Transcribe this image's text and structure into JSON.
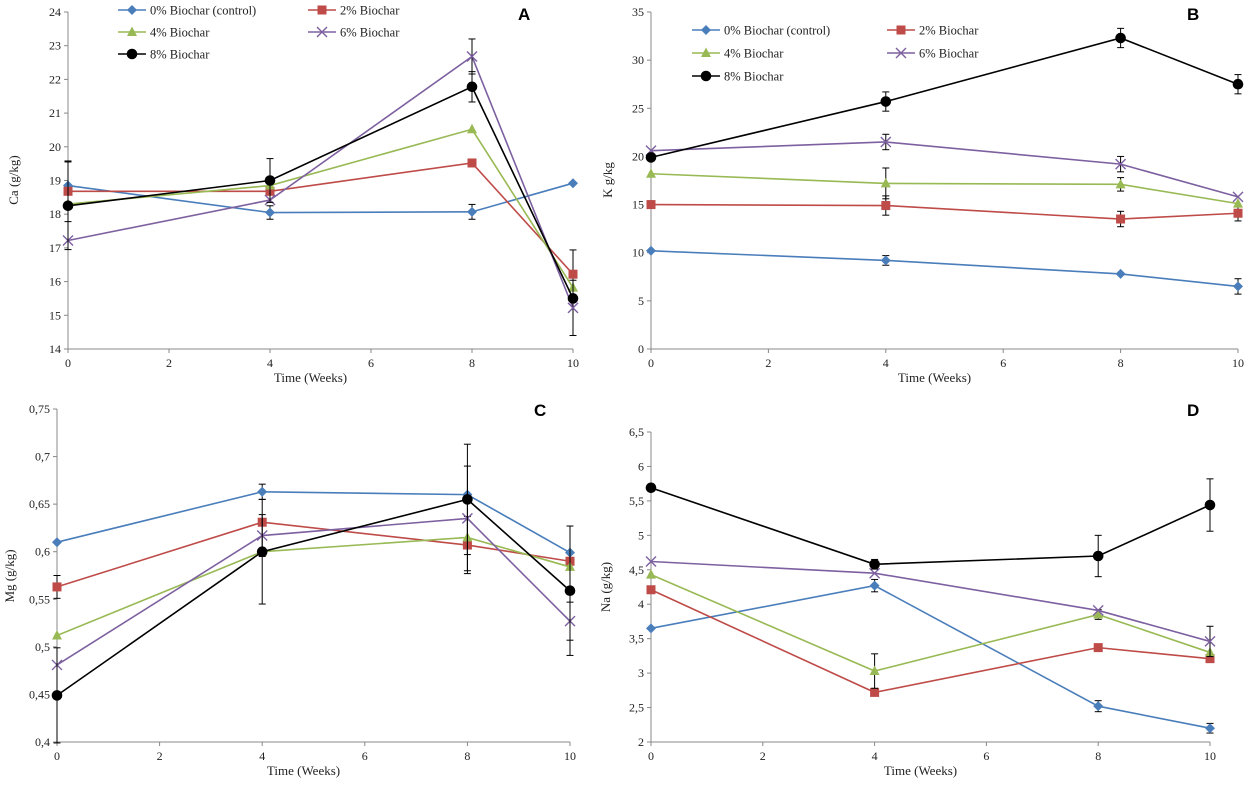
{
  "figure": {
    "panel_letters": [
      "A",
      "B",
      "C",
      "D"
    ]
  },
  "series_styles": [
    {
      "name": "0% Biochar (control)",
      "color": "#4a7ebb",
      "marker": "diamond"
    },
    {
      "name": "2% Biochar",
      "color": "#be4b48",
      "marker": "square"
    },
    {
      "name": "4% Biochar",
      "color": "#98b954",
      "marker": "triangle"
    },
    {
      "name": "6% Biochar",
      "color": "#7d60a0",
      "marker": "x"
    },
    {
      "name": "8% Biochar",
      "color": "#000000",
      "marker": "circle"
    }
  ],
  "chart_data": [
    {
      "panel": "A",
      "type": "line",
      "xlabel": "Time (Weeks)",
      "ylabel": "Ca (g/kg)",
      "xlim": [
        0,
        10
      ],
      "ylim": [
        14,
        24
      ],
      "xticks": [
        "0",
        "2",
        "4",
        "6",
        "8",
        "10"
      ],
      "yticks": [
        "14",
        "15",
        "16",
        "17",
        "18",
        "19",
        "20",
        "21",
        "22",
        "23",
        "24"
      ],
      "legend_position": "top-left",
      "x": [
        0,
        4,
        8,
        10
      ],
      "series": [
        {
          "name": "0% Biochar (control)",
          "values": [
            18.85,
            18.05,
            18.07,
            18.92
          ],
          "errors": [
            0,
            0.2,
            0.22,
            0
          ]
        },
        {
          "name": "2% Biochar",
          "values": [
            18.68,
            18.68,
            19.52,
            16.22
          ],
          "errors": [
            0.9,
            0,
            0,
            0.72
          ]
        },
        {
          "name": "4% Biochar",
          "values": [
            18.3,
            18.85,
            20.52,
            15.82
          ],
          "errors": [
            0,
            0,
            0,
            0
          ]
        },
        {
          "name": "6% Biochar",
          "values": [
            17.22,
            18.42,
            22.68,
            15.22
          ],
          "errors": [
            0,
            0,
            0.52,
            0.82
          ]
        },
        {
          "name": "8% Biochar",
          "values": [
            18.25,
            19.0,
            21.78,
            15.5
          ],
          "errors": [
            1.3,
            0.65,
            0.45,
            0
          ]
        }
      ]
    },
    {
      "panel": "B",
      "type": "line",
      "xlabel": "Time (Weeks)",
      "ylabel": "K g/kg",
      "xlim": [
        0,
        10
      ],
      "ylim": [
        0,
        35
      ],
      "xticks": [
        "0",
        "2",
        "4",
        "6",
        "8",
        "10"
      ],
      "yticks": [
        "0",
        "5",
        "10",
        "15",
        "20",
        "25",
        "30",
        "35"
      ],
      "legend_position": "top-left",
      "x": [
        0,
        4,
        8,
        10
      ],
      "series": [
        {
          "name": "0% Biochar (control)",
          "values": [
            10.2,
            9.2,
            7.8,
            6.5
          ],
          "errors": [
            0,
            0.5,
            0,
            0.8
          ]
        },
        {
          "name": "2% Biochar",
          "values": [
            15.0,
            14.9,
            13.5,
            14.1
          ],
          "errors": [
            0,
            1.0,
            0.8,
            0.8
          ]
        },
        {
          "name": "4% Biochar",
          "values": [
            18.2,
            17.2,
            17.1,
            15.1
          ],
          "errors": [
            0,
            1.6,
            0.7,
            0
          ]
        },
        {
          "name": "6% Biochar",
          "values": [
            20.6,
            21.5,
            19.2,
            15.8
          ],
          "errors": [
            0,
            0.8,
            0.8,
            0
          ]
        },
        {
          "name": "8% Biochar",
          "values": [
            19.9,
            25.7,
            32.3,
            27.5
          ],
          "errors": [
            0,
            1.0,
            1.0,
            1.0
          ]
        }
      ]
    },
    {
      "panel": "C",
      "type": "line",
      "xlabel": "Time (Weeks)",
      "ylabel": "Mg (g/kg)",
      "xlim": [
        0,
        10
      ],
      "ylim": [
        0.4,
        0.75
      ],
      "xticks": [
        "0",
        "2",
        "4",
        "6",
        "8",
        "10"
      ],
      "yticks": [
        "0,4",
        "0,45",
        "0,5",
        "0,55",
        "0,6",
        "0,65",
        "0,7",
        "0,75"
      ],
      "legend_position": "none",
      "x": [
        0,
        4,
        8,
        10
      ],
      "series": [
        {
          "name": "0% Biochar (control)",
          "values": [
            0.61,
            0.663,
            0.66,
            0.599
          ],
          "errors": [
            0,
            0.008,
            0,
            0
          ]
        },
        {
          "name": "2% Biochar",
          "values": [
            0.563,
            0.631,
            0.607,
            0.59
          ],
          "errors": [
            0.012,
            0,
            0.03,
            0
          ]
        },
        {
          "name": "4% Biochar",
          "values": [
            0.512,
            0.6,
            0.615,
            0.584
          ],
          "errors": [
            0,
            0,
            0,
            0
          ]
        },
        {
          "name": "6% Biochar",
          "values": [
            0.481,
            0.617,
            0.635,
            0.527
          ],
          "errors": [
            0,
            0.022,
            0.055,
            0.02
          ]
        },
        {
          "name": "8% Biochar",
          "values": [
            0.449,
            0.6,
            0.655,
            0.559
          ],
          "errors": [
            0.05,
            0.055,
            0.058,
            0.068
          ]
        }
      ]
    },
    {
      "panel": "D",
      "type": "line",
      "xlabel": "Time (Weeks)",
      "ylabel": "Na (g/kg)",
      "xlim": [
        0,
        10
      ],
      "ylim": [
        2,
        6.5
      ],
      "xticks": [
        "0",
        "2",
        "4",
        "6",
        "8",
        "10"
      ],
      "yticks": [
        "2",
        "2,5",
        "3",
        "3,5",
        "4",
        "4,5",
        "5",
        "5,5",
        "6",
        "6,5"
      ],
      "legend_position": "none",
      "x": [
        0,
        4,
        8,
        10
      ],
      "series": [
        {
          "name": "0% Biochar (control)",
          "values": [
            3.65,
            4.27,
            2.52,
            2.2
          ],
          "errors": [
            0,
            0.09,
            0.08,
            0.07
          ]
        },
        {
          "name": "2% Biochar",
          "values": [
            4.21,
            2.72,
            3.37,
            3.21
          ],
          "errors": [
            0,
            0,
            0,
            0
          ]
        },
        {
          "name": "4% Biochar",
          "values": [
            4.43,
            3.03,
            3.85,
            3.3
          ],
          "errors": [
            0,
            0.25,
            0.07,
            0
          ]
        },
        {
          "name": "6% Biochar",
          "values": [
            4.62,
            4.45,
            3.91,
            3.46
          ],
          "errors": [
            0,
            0,
            0,
            0.22
          ]
        },
        {
          "name": "8% Biochar",
          "values": [
            5.69,
            4.58,
            4.7,
            5.44
          ],
          "errors": [
            0,
            0.07,
            0.3,
            0.38
          ]
        }
      ]
    }
  ]
}
